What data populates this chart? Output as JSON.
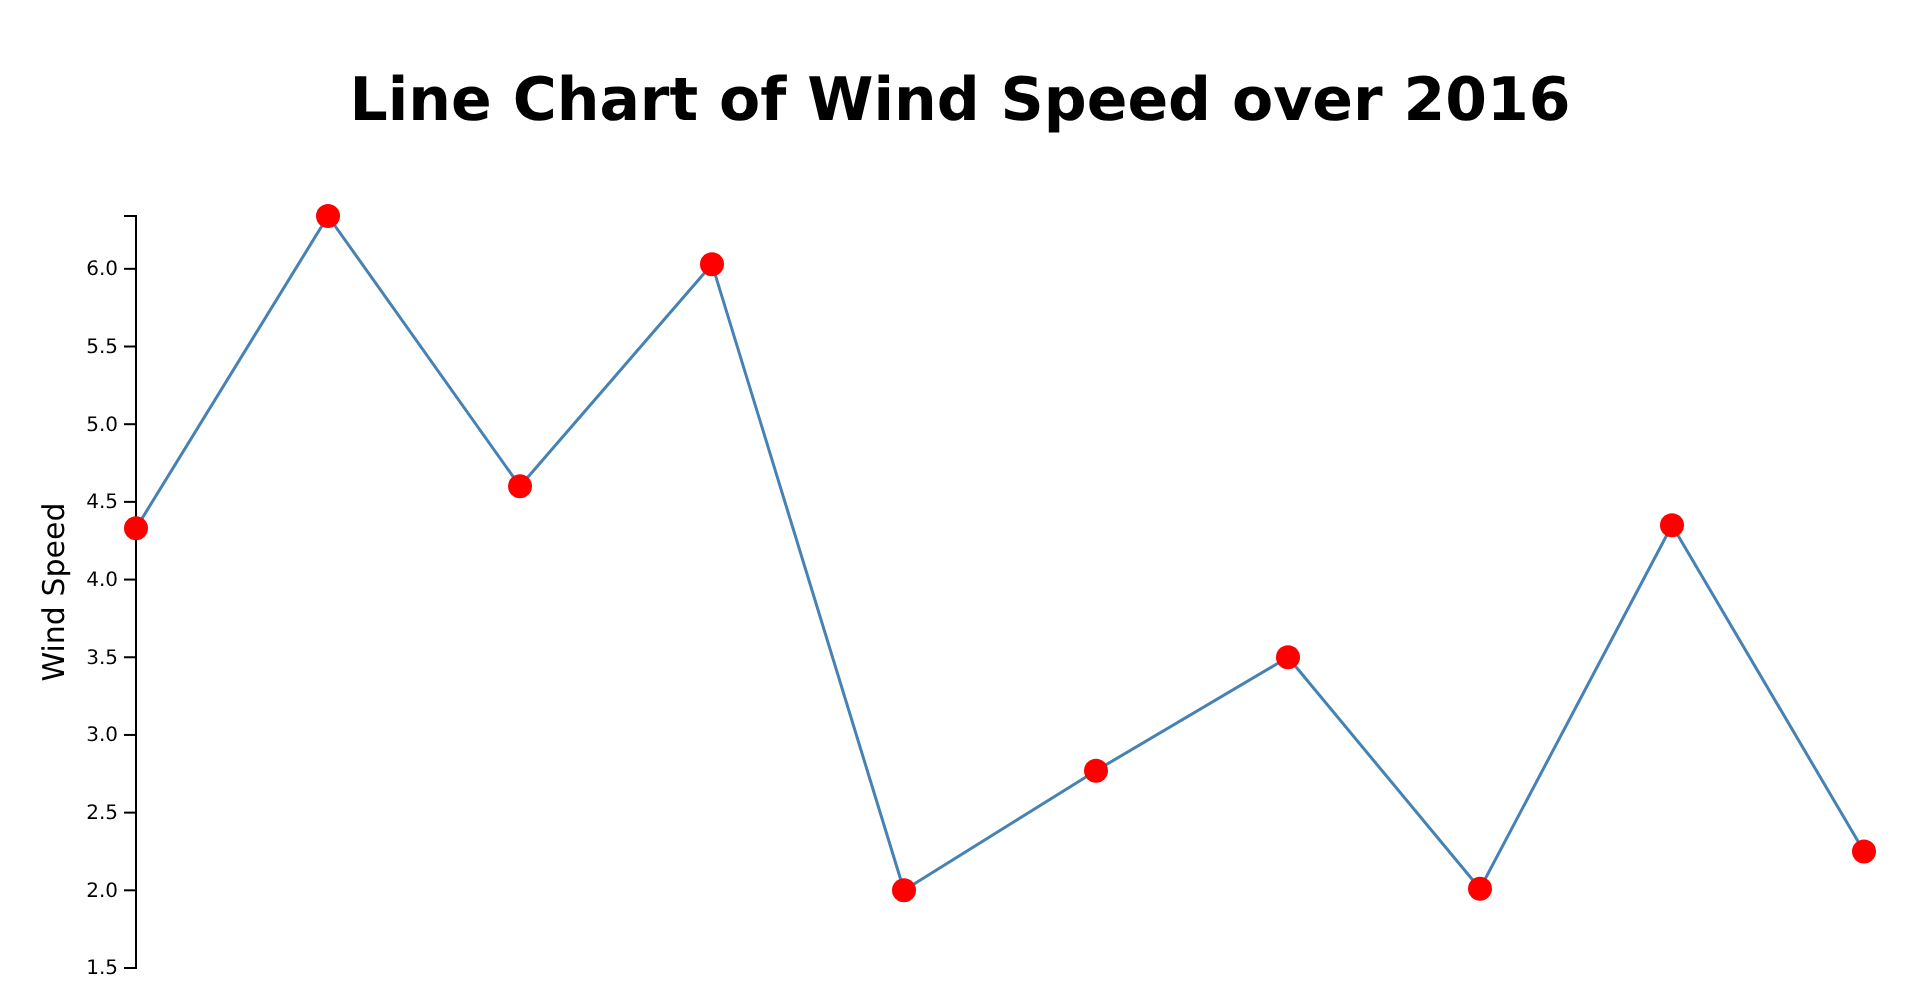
{
  "chart_data": {
    "type": "line",
    "title": "Line Chart of Wind Speed over 2016",
    "ylabel": "Wind Speed",
    "categories": [
      null,
      null,
      null,
      null,
      null,
      null,
      null,
      null,
      null,
      null
    ],
    "series": [
      {
        "color": "#4682b4",
        "values": [
          4.33,
          6.34,
          4.6,
          6.03,
          2.0,
          2.77,
          3.5,
          2.01,
          4.35,
          2.25
        ]
      }
    ],
    "ylim": [
      1.5,
      6.34
    ],
    "yticks": [
      1.5,
      {
        "value": 2,
        "label": "2.0"
      },
      2.5,
      {
        "value": 3,
        "label": "3.0"
      },
      3.5,
      {
        "value": 4,
        "label": "4.0"
      },
      4.5,
      {
        "value": 5,
        "label": "5.0"
      },
      5.5,
      {
        "value": 6,
        "label": "6.0"
      }
    ],
    "tick_labels": "y",
    "marker": "circle"
  }
}
